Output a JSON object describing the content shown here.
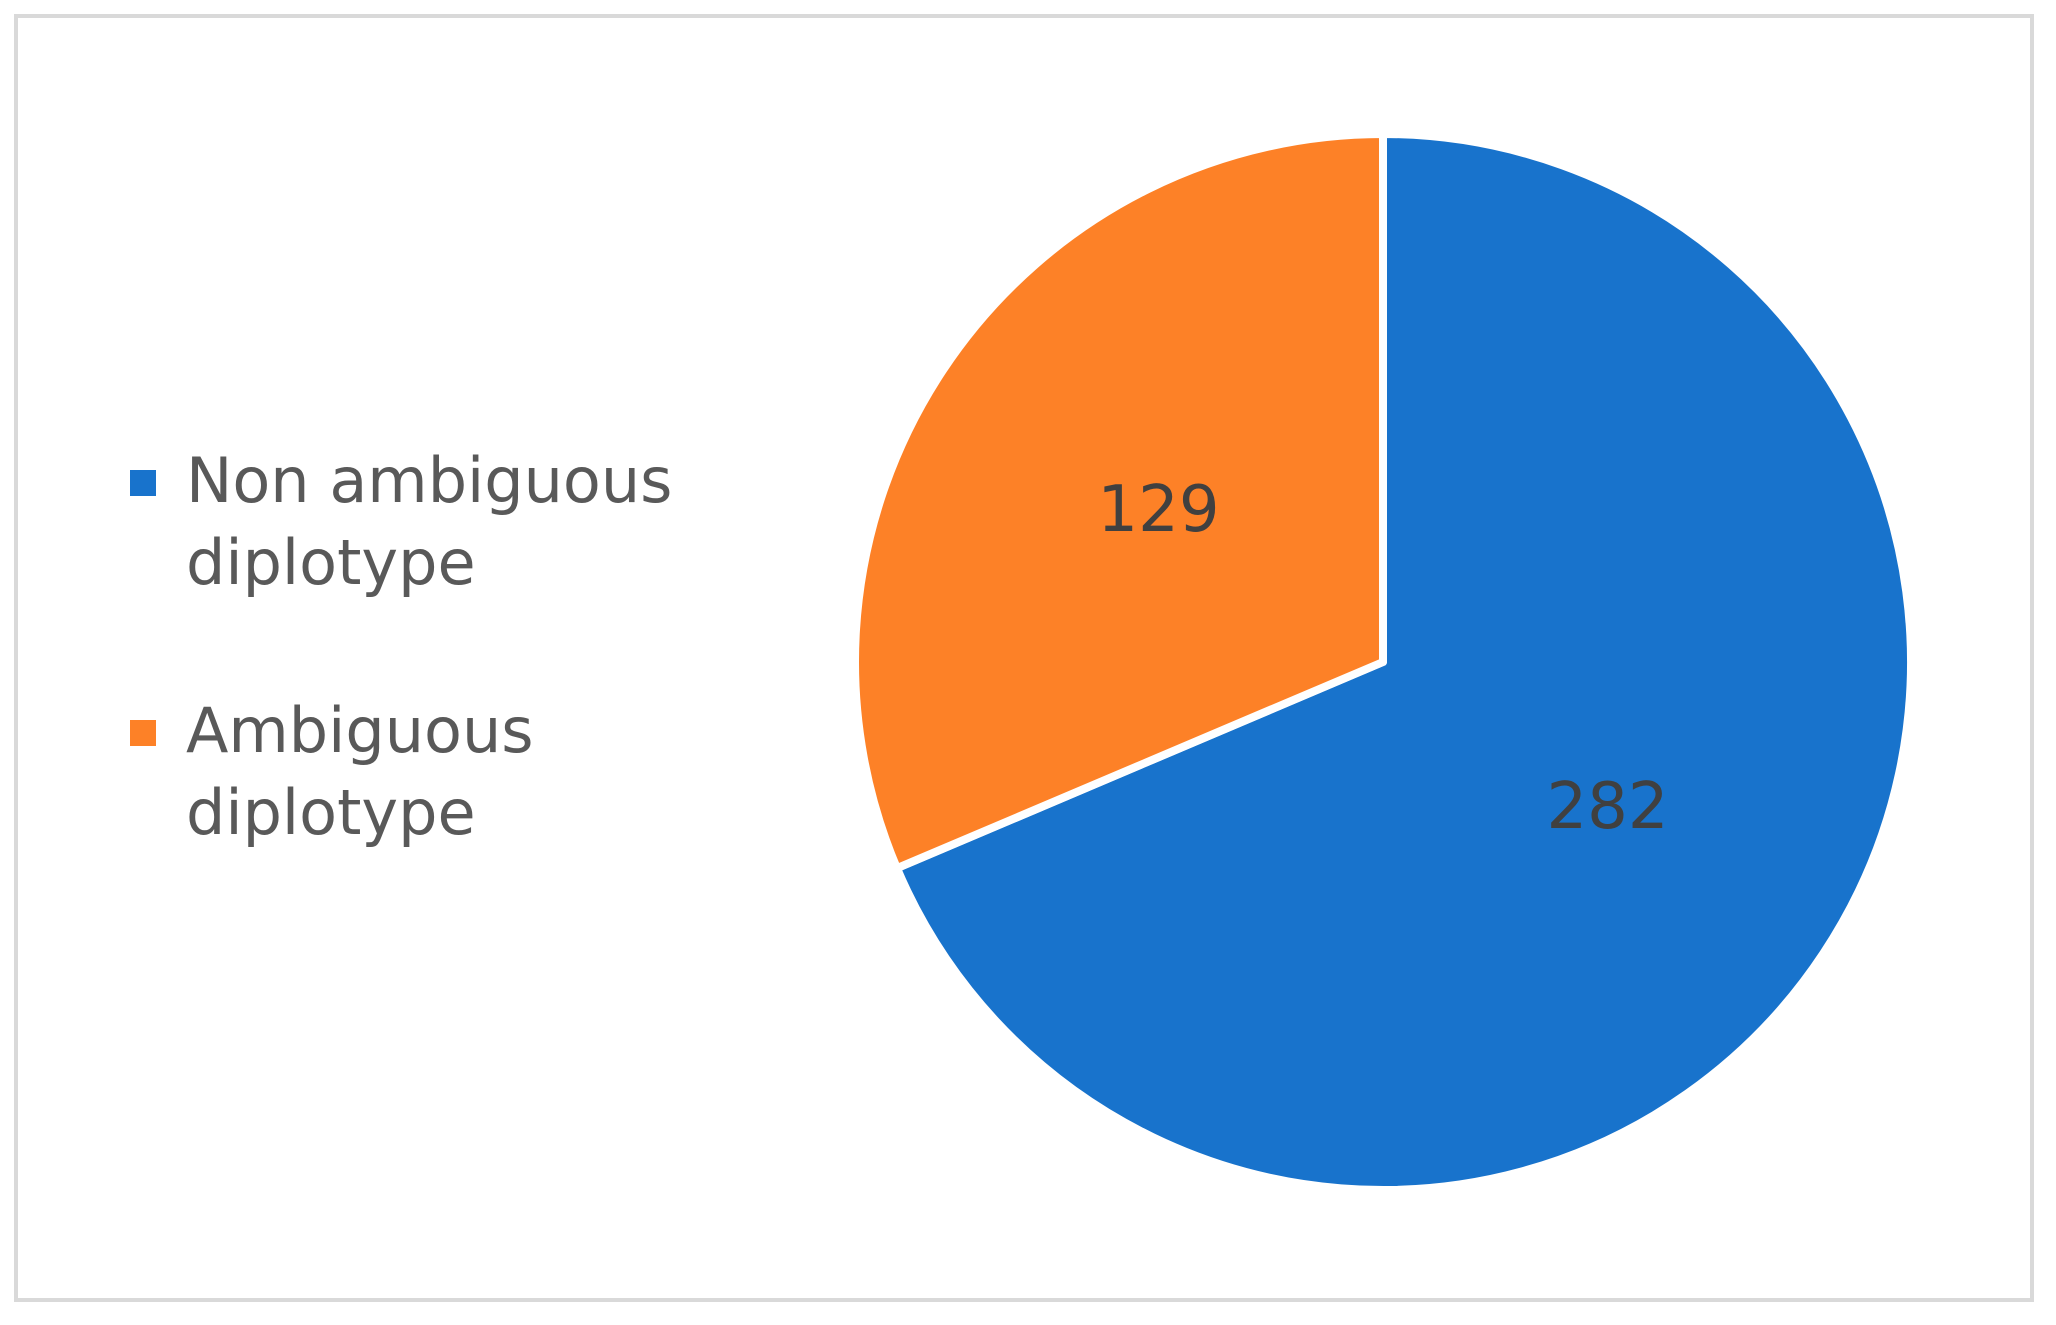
{
  "chart_data": {
    "type": "pie",
    "categories": [
      "Non ambiguous diplotype",
      "Ambiguous diplotype"
    ],
    "values": [
      282,
      129
    ],
    "colors": [
      "#1873cc",
      "#fd8127"
    ],
    "legend": "left"
  }
}
